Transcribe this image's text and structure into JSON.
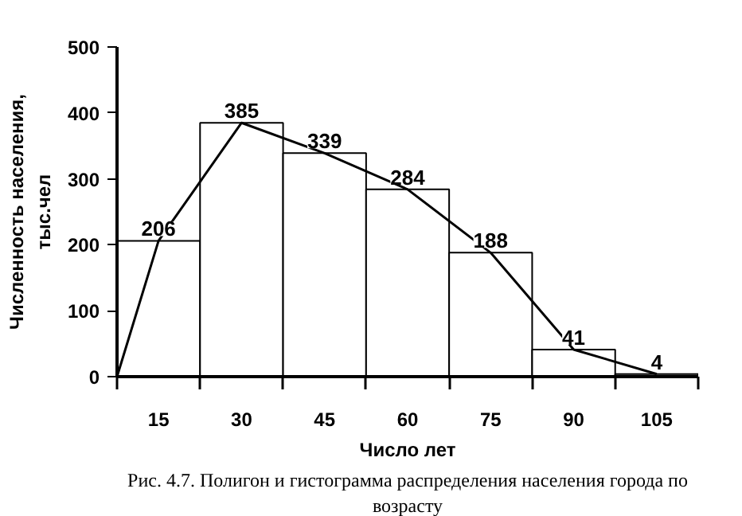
{
  "chart_data": {
    "type": "histogram",
    "xlabel": "Число лет",
    "ylabel": "Численность населения, тыс.чел",
    "annotations": [
      "Рис. 4.7. Полигон и гистограмма распределения населения города по возрасту"
    ],
    "bins": [
      7.5,
      22.5,
      37.5,
      52.5,
      67.5,
      82.5,
      97.5,
      112.5
    ],
    "values": [
      206,
      385,
      339,
      284,
      188,
      41,
      4
    ],
    "color": "#ffffff",
    "value_labels": [
      "206",
      "385",
      "339",
      "284",
      "188",
      "41",
      "4"
    ],
    "series": [
      {
        "type": "line",
        "x": [
          7.5,
          15,
          30,
          45,
          60,
          75,
          90,
          105
        ],
        "values": [
          0,
          206,
          385,
          339,
          284,
          188,
          41,
          4
        ],
        "color": "#000000"
      }
    ],
    "xlim": [
      7.5,
      112.5
    ],
    "xticks": [
      {
        "value": 7.5,
        "label": null
      },
      15,
      {
        "value": 22.5,
        "label": null
      },
      30,
      {
        "value": 37.5,
        "label": null
      },
      45,
      {
        "value": 52.5,
        "label": null
      },
      60,
      {
        "value": 67.5,
        "label": null
      },
      75,
      {
        "value": 82.5,
        "label": null
      },
      90,
      {
        "value": 97.5,
        "label": null
      },
      105,
      {
        "value": 112.5,
        "label": null
      }
    ],
    "ylim": [
      0,
      500
    ],
    "yticks": [
      0,
      100,
      200,
      300,
      400,
      500
    ],
    "grid": false
  }
}
